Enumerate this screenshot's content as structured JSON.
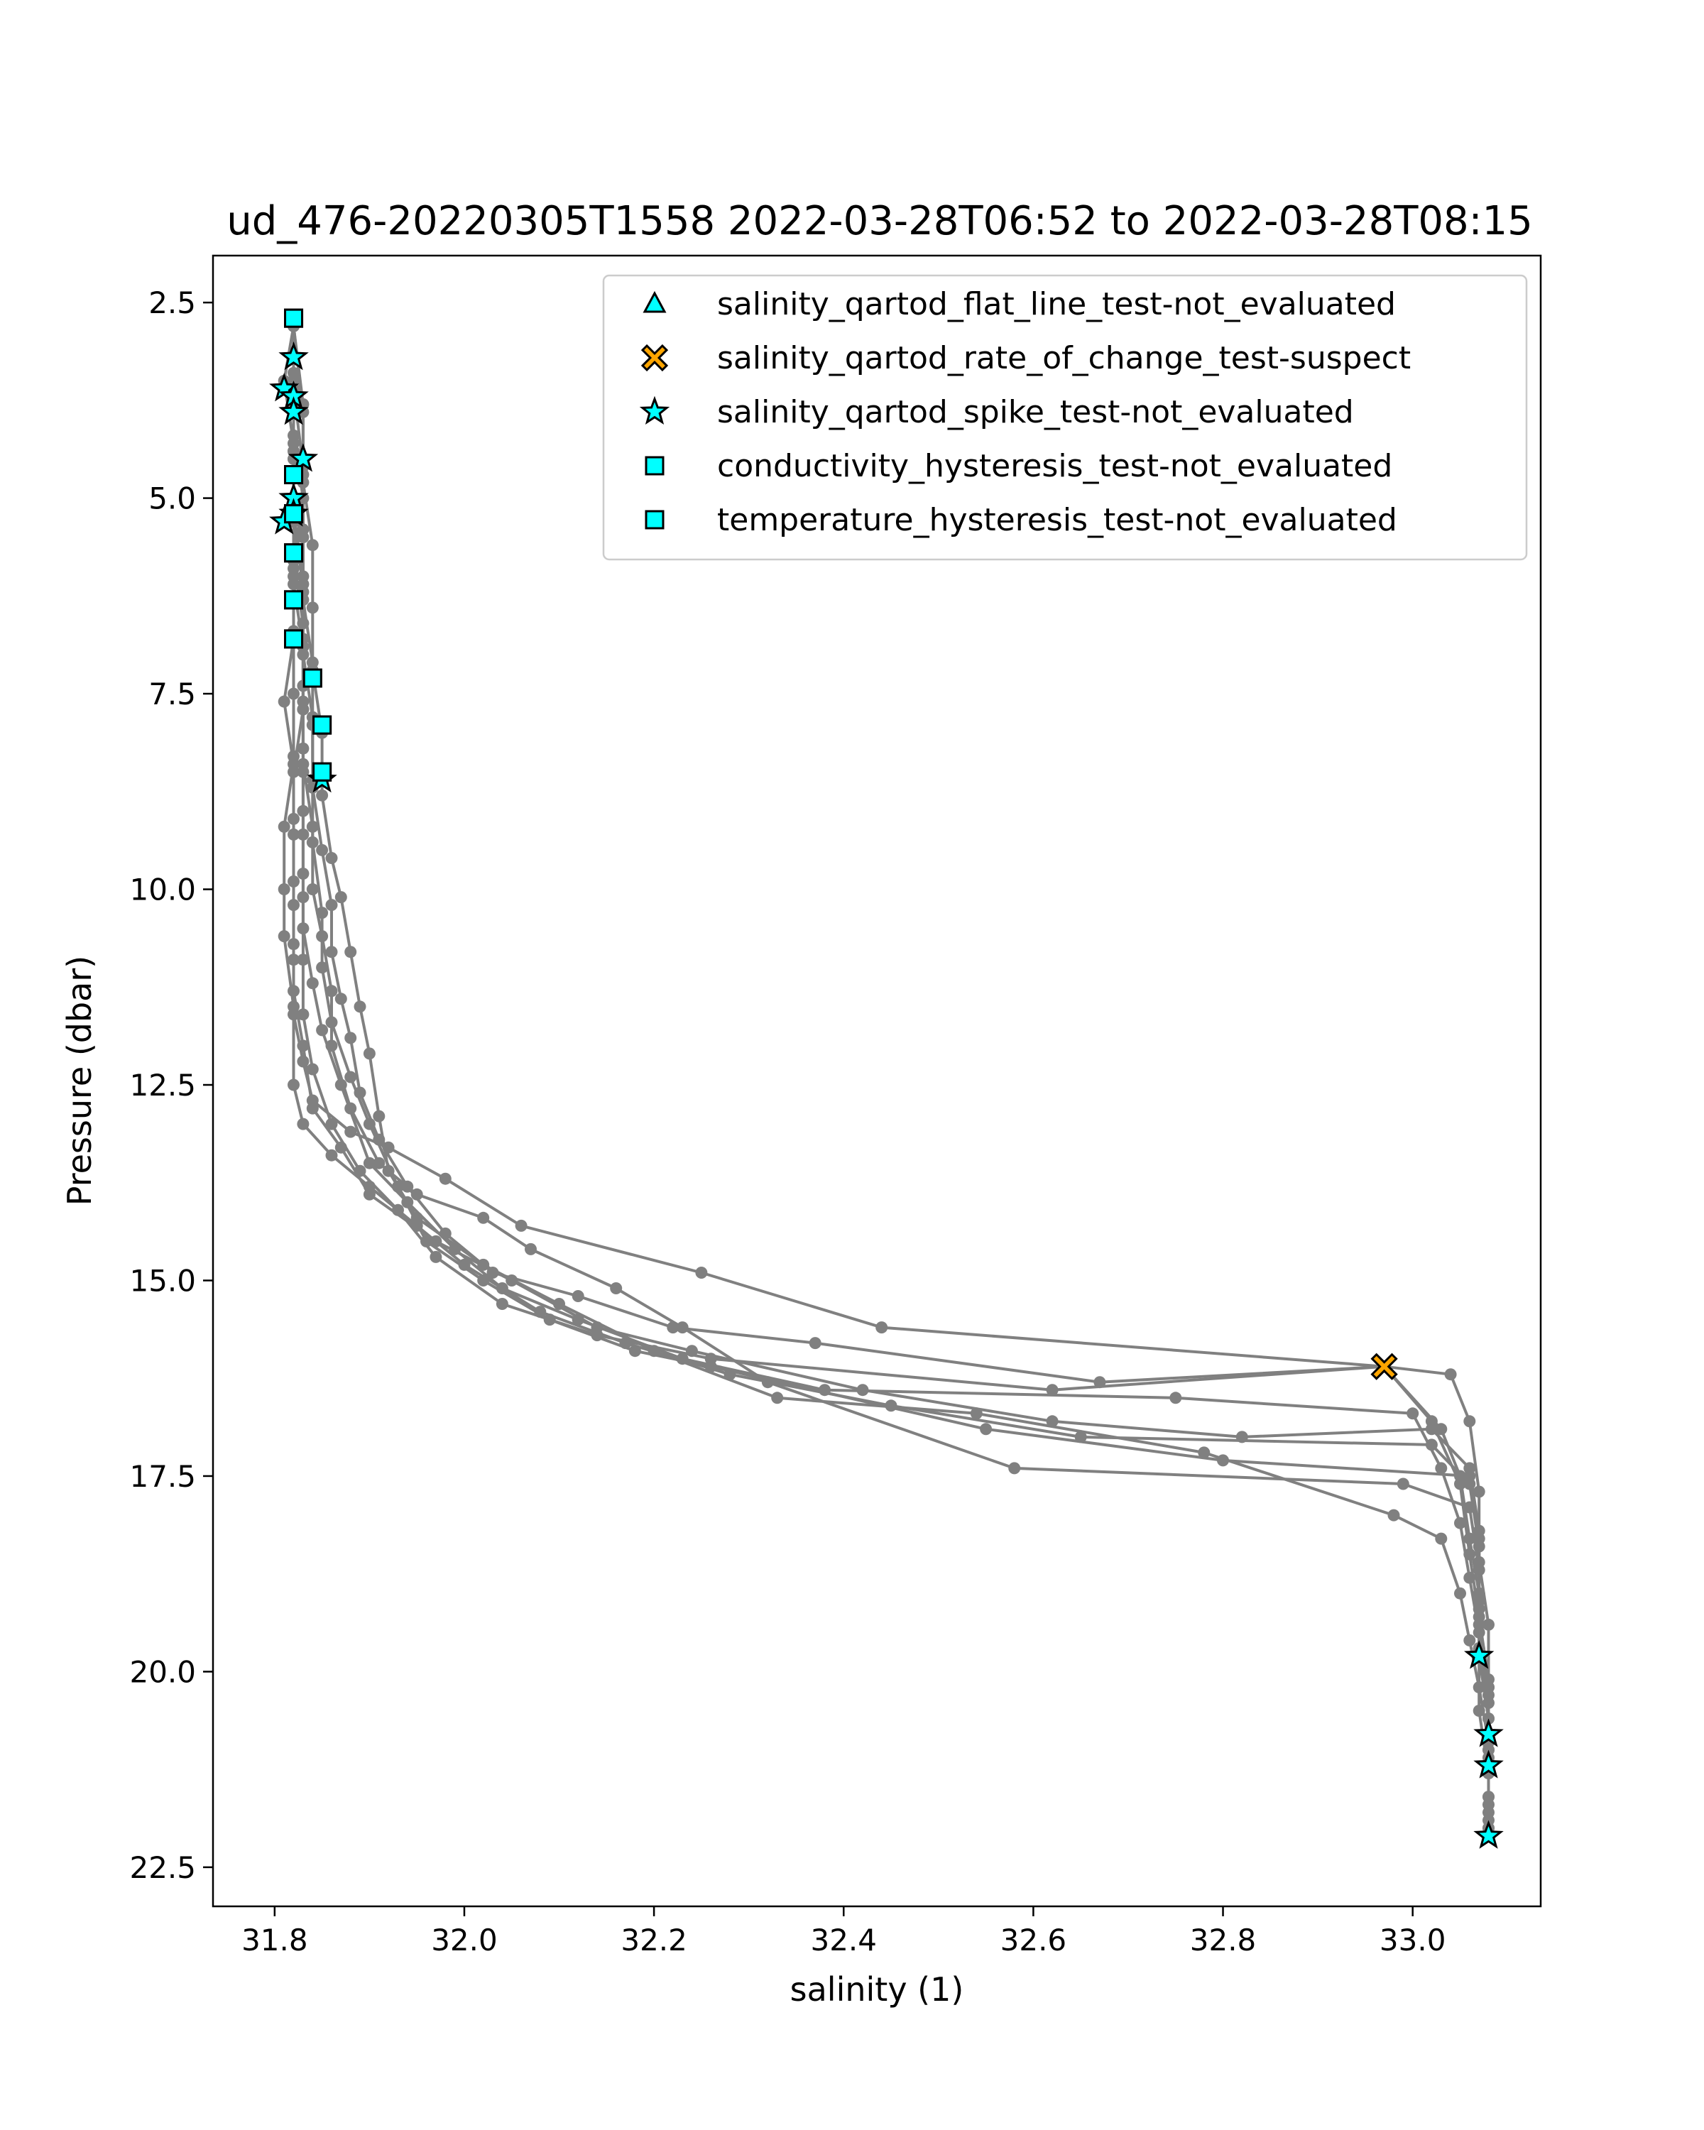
{
  "chart_data": {
    "type": "scatter",
    "title": "ud_476-20220305T1558 2022-03-28T06:52 to 2022-03-28T08:15",
    "xlabel": "salinity (1)",
    "ylabel": "Pressure (dbar)",
    "xlim": [
      31.735,
      33.135
    ],
    "ylim": [
      23.0,
      1.9
    ],
    "y_inverted": true,
    "grid": false,
    "legend_position": "top-right",
    "xticks": [
      "31.8",
      "32.0",
      "32.2",
      "32.4",
      "32.6",
      "32.8",
      "33.0"
    ],
    "yticks": [
      "2.5",
      "5.0",
      "7.5",
      "10.0",
      "12.5",
      "15.0",
      "17.5",
      "20.0",
      "22.5"
    ],
    "profile_color": "#808080",
    "profiles": [
      [
        [
          31.82,
          2.8
        ],
        [
          31.82,
          3.6
        ],
        [
          31.82,
          4.4
        ],
        [
          31.82,
          5.2
        ],
        [
          31.82,
          6.0
        ],
        [
          31.82,
          6.8
        ],
        [
          31.81,
          7.6
        ],
        [
          31.82,
          8.4
        ],
        [
          31.81,
          9.2
        ],
        [
          31.81,
          10.0
        ],
        [
          31.81,
          10.6
        ],
        [
          31.82,
          11.5
        ],
        [
          31.82,
          12.5
        ],
        [
          31.83,
          13.0
        ],
        [
          31.86,
          13.4
        ],
        [
          31.9,
          13.8
        ],
        [
          31.95,
          14.3
        ],
        [
          32.0,
          14.8
        ],
        [
          32.08,
          15.4
        ],
        [
          32.17,
          15.8
        ],
        [
          32.28,
          16.2
        ],
        [
          32.45,
          16.6
        ],
        [
          32.65,
          17.0
        ],
        [
          33.02,
          17.1
        ],
        [
          33.06,
          17.6
        ],
        [
          33.07,
          18.4
        ],
        [
          33.07,
          19.2
        ],
        [
          33.07,
          19.8
        ],
        [
          33.08,
          20.6
        ],
        [
          33.08,
          21.2
        ],
        [
          33.08,
          21.9
        ],
        [
          33.08,
          22.1
        ]
      ],
      [
        [
          31.82,
          2.8
        ],
        [
          31.82,
          3.7
        ],
        [
          31.82,
          4.5
        ],
        [
          31.82,
          5.3
        ],
        [
          31.82,
          6.1
        ],
        [
          31.83,
          6.9
        ],
        [
          31.83,
          7.7
        ],
        [
          31.82,
          8.5
        ],
        [
          31.82,
          9.3
        ],
        [
          31.82,
          10.2
        ],
        [
          31.82,
          10.9
        ],
        [
          31.82,
          11.6
        ],
        [
          31.83,
          12.2
        ],
        [
          31.84,
          12.7
        ],
        [
          31.88,
          13.1
        ],
        [
          31.92,
          13.3
        ],
        [
          31.98,
          13.7
        ],
        [
          32.06,
          14.3
        ],
        [
          32.25,
          14.9
        ],
        [
          32.44,
          15.6
        ],
        [
          32.97,
          16.1
        ],
        [
          33.03,
          16.9
        ],
        [
          33.05,
          17.5
        ],
        [
          33.06,
          18.3
        ],
        [
          33.07,
          19.0
        ],
        [
          33.07,
          19.7
        ],
        [
          33.08,
          20.4
        ],
        [
          33.08,
          20.8
        ],
        [
          33.08,
          21.6
        ],
        [
          33.08,
          22.0
        ]
      ],
      [
        [
          31.82,
          2.8
        ],
        [
          31.82,
          3.4
        ],
        [
          31.82,
          4.2
        ],
        [
          31.83,
          5.0
        ],
        [
          31.82,
          5.8
        ],
        [
          31.83,
          6.6
        ],
        [
          31.83,
          7.4
        ],
        [
          31.83,
          8.2
        ],
        [
          31.83,
          9.0
        ],
        [
          31.83,
          9.8
        ],
        [
          31.83,
          10.5
        ],
        [
          31.84,
          11.2
        ],
        [
          31.85,
          11.8
        ],
        [
          31.87,
          12.5
        ],
        [
          31.9,
          13.5
        ],
        [
          31.94,
          14.0
        ],
        [
          31.99,
          14.6
        ],
        [
          32.04,
          15.1
        ],
        [
          32.12,
          15.5
        ],
        [
          32.23,
          16.0
        ],
        [
          32.38,
          16.4
        ],
        [
          32.75,
          16.5
        ],
        [
          33.0,
          16.7
        ],
        [
          33.03,
          17.4
        ],
        [
          33.05,
          18.1
        ],
        [
          33.06,
          18.8
        ],
        [
          33.07,
          19.5
        ],
        [
          33.08,
          20.3
        ],
        [
          33.08,
          21.1
        ]
      ],
      [
        [
          31.82,
          2.8
        ],
        [
          31.83,
          3.8
        ],
        [
          31.83,
          4.7
        ],
        [
          31.83,
          5.5
        ],
        [
          31.83,
          6.3
        ],
        [
          31.84,
          7.1
        ],
        [
          31.84,
          7.9
        ],
        [
          31.84,
          8.7
        ],
        [
          31.85,
          9.5
        ],
        [
          31.86,
          10.2
        ],
        [
          31.86,
          10.8
        ],
        [
          31.87,
          11.4
        ],
        [
          31.88,
          11.9
        ],
        [
          31.89,
          12.6
        ],
        [
          31.91,
          13.2
        ],
        [
          31.94,
          13.8
        ],
        [
          31.98,
          14.4
        ],
        [
          32.03,
          14.9
        ],
        [
          32.12,
          15.2
        ],
        [
          32.22,
          15.6
        ],
        [
          32.37,
          15.8
        ],
        [
          32.67,
          16.3
        ],
        [
          32.97,
          16.1
        ],
        [
          33.04,
          16.2
        ],
        [
          33.06,
          16.8
        ],
        [
          33.07,
          17.7
        ],
        [
          33.07,
          18.6
        ],
        [
          33.08,
          19.4
        ],
        [
          33.08,
          20.2
        ],
        [
          33.08,
          21.0
        ]
      ],
      [
        [
          31.82,
          2.8
        ],
        [
          31.83,
          3.9
        ],
        [
          31.83,
          4.8
        ],
        [
          31.84,
          5.6
        ],
        [
          31.84,
          6.4
        ],
        [
          31.84,
          7.2
        ],
        [
          31.85,
          8.0
        ],
        [
          31.85,
          8.8
        ],
        [
          31.86,
          9.6
        ],
        [
          31.87,
          10.1
        ],
        [
          31.88,
          10.8
        ],
        [
          31.89,
          11.5
        ],
        [
          31.9,
          12.1
        ],
        [
          31.91,
          12.9
        ],
        [
          31.92,
          13.6
        ],
        [
          31.95,
          14.2
        ],
        [
          32.02,
          14.8
        ],
        [
          32.1,
          15.3
        ],
        [
          32.2,
          15.9
        ],
        [
          32.33,
          16.5
        ],
        [
          32.54,
          16.7
        ],
        [
          32.78,
          17.2
        ],
        [
          32.98,
          18.0
        ],
        [
          33.03,
          18.3
        ],
        [
          33.05,
          19.0
        ],
        [
          33.06,
          19.6
        ],
        [
          33.07,
          20.2
        ],
        [
          33.08,
          20.9
        ],
        [
          33.08,
          21.6
        ]
      ],
      [
        [
          31.82,
          2.8
        ],
        [
          31.81,
          3.5
        ],
        [
          31.82,
          4.3
        ],
        [
          31.82,
          5.1
        ],
        [
          31.82,
          5.9
        ],
        [
          31.82,
          6.7
        ],
        [
          31.82,
          7.5
        ],
        [
          31.82,
          8.3
        ],
        [
          31.82,
          9.1
        ],
        [
          31.82,
          9.9
        ],
        [
          31.82,
          10.7
        ],
        [
          31.82,
          11.3
        ],
        [
          31.83,
          12.0
        ],
        [
          31.84,
          12.8
        ],
        [
          31.87,
          13.3
        ],
        [
          31.9,
          13.9
        ],
        [
          31.97,
          14.5
        ],
        [
          32.05,
          15.0
        ],
        [
          32.14,
          15.6
        ],
        [
          32.24,
          15.9
        ],
        [
          32.42,
          16.4
        ],
        [
          32.62,
          16.8
        ],
        [
          32.82,
          17.0
        ],
        [
          33.02,
          16.9
        ],
        [
          33.06,
          17.4
        ],
        [
          33.07,
          18.2
        ],
        [
          33.07,
          19.0
        ],
        [
          33.07,
          19.7
        ],
        [
          33.07,
          20.5
        ],
        [
          33.08,
          21.3
        ]
      ],
      [
        [
          31.82,
          2.8
        ],
        [
          31.82,
          3.6
        ],
        [
          31.83,
          4.6
        ],
        [
          31.83,
          5.4
        ],
        [
          31.83,
          6.2
        ],
        [
          31.83,
          7.0
        ],
        [
          31.84,
          7.8
        ],
        [
          31.84,
          8.6
        ],
        [
          31.84,
          9.4
        ],
        [
          31.85,
          10.3
        ],
        [
          31.85,
          11.0
        ],
        [
          31.86,
          11.7
        ],
        [
          31.88,
          12.4
        ],
        [
          31.9,
          13.0
        ],
        [
          31.93,
          13.8
        ],
        [
          31.96,
          14.5
        ],
        [
          32.02,
          15.0
        ],
        [
          32.09,
          15.5
        ],
        [
          32.18,
          15.9
        ],
        [
          32.26,
          16.1
        ],
        [
          32.55,
          16.9
        ],
        [
          32.8,
          17.3
        ],
        [
          33.06,
          17.5
        ],
        [
          33.07,
          18.3
        ],
        [
          33.07,
          19.1
        ],
        [
          33.07,
          19.8
        ],
        [
          33.08,
          20.6
        ],
        [
          33.08,
          21.2
        ],
        [
          33.08,
          22.0
        ]
      ],
      [
        [
          31.82,
          2.8
        ],
        [
          31.82,
          3.5
        ],
        [
          31.82,
          4.4
        ],
        [
          31.82,
          5.3
        ],
        [
          31.83,
          6.1
        ],
        [
          31.83,
          6.9
        ],
        [
          31.83,
          7.7
        ],
        [
          31.83,
          8.5
        ],
        [
          31.83,
          9.3
        ],
        [
          31.83,
          10.1
        ],
        [
          31.83,
          10.9
        ],
        [
          31.83,
          11.6
        ],
        [
          31.84,
          12.3
        ],
        [
          31.86,
          13.0
        ],
        [
          31.89,
          13.6
        ],
        [
          31.93,
          14.1
        ],
        [
          31.97,
          14.7
        ],
        [
          32.04,
          15.3
        ],
        [
          32.14,
          15.7
        ],
        [
          32.26,
          16.0
        ],
        [
          32.62,
          16.4
        ],
        [
          32.97,
          16.1
        ],
        [
          33.02,
          16.8
        ],
        [
          33.05,
          17.6
        ],
        [
          33.06,
          18.5
        ],
        [
          33.07,
          19.3
        ],
        [
          33.08,
          20.1
        ],
        [
          33.08,
          20.9
        ],
        [
          33.08,
          21.8
        ]
      ],
      [
        [
          31.82,
          2.8
        ],
        [
          31.82,
          3.7
        ],
        [
          31.82,
          4.5
        ],
        [
          31.82,
          5.2
        ],
        [
          31.83,
          6.0
        ],
        [
          31.83,
          6.8
        ],
        [
          31.83,
          7.6
        ],
        [
          31.83,
          8.4
        ],
        [
          31.84,
          9.2
        ],
        [
          31.84,
          10.0
        ],
        [
          31.85,
          10.6
        ],
        [
          31.86,
          11.3
        ],
        [
          31.86,
          12.0
        ],
        [
          31.88,
          12.8
        ],
        [
          31.91,
          13.5
        ],
        [
          31.95,
          13.9
        ],
        [
          32.02,
          14.2
        ],
        [
          32.07,
          14.6
        ],
        [
          32.16,
          15.1
        ],
        [
          32.23,
          15.6
        ],
        [
          32.32,
          16.3
        ],
        [
          32.58,
          17.4
        ],
        [
          32.99,
          17.6
        ],
        [
          33.06,
          17.9
        ],
        [
          33.07,
          18.7
        ],
        [
          33.07,
          19.4
        ],
        [
          33.08,
          20.2
        ],
        [
          33.08,
          21.0
        ],
        [
          33.08,
          21.7
        ]
      ]
    ],
    "flags": [
      {
        "label": "salinity_qartod_spike_test-not_evaluated",
        "marker": "star",
        "color": "#00ffff",
        "points": [
          [
            31.82,
            3.2
          ],
          [
            31.81,
            3.6
          ],
          [
            31.82,
            3.7
          ],
          [
            31.82,
            3.9
          ],
          [
            31.83,
            4.5
          ],
          [
            31.82,
            5.0
          ],
          [
            31.82,
            5.2
          ],
          [
            31.81,
            5.3
          ],
          [
            31.85,
            8.6
          ],
          [
            33.07,
            19.8
          ],
          [
            33.08,
            20.8
          ],
          [
            33.08,
            21.2
          ],
          [
            33.08,
            22.1
          ]
        ]
      },
      {
        "label": "conductivity_hysteresis_test-not_evaluated",
        "marker": "square",
        "color": "#00ffff",
        "points": [
          [
            31.82,
            2.7
          ],
          [
            31.82,
            4.7
          ],
          [
            31.82,
            5.2
          ],
          [
            31.82,
            5.7
          ],
          [
            31.82,
            6.3
          ],
          [
            31.82,
            6.8
          ],
          [
            31.84,
            7.3
          ],
          [
            31.85,
            7.9
          ],
          [
            31.85,
            8.5
          ]
        ]
      },
      {
        "label": "temperature_hysteresis_test-not_evaluated",
        "marker": "square",
        "color": "#00ffff",
        "points": [
          [
            31.82,
            2.7
          ],
          [
            31.82,
            4.7
          ],
          [
            31.82,
            5.2
          ],
          [
            31.82,
            5.7
          ],
          [
            31.82,
            6.3
          ],
          [
            31.82,
            6.8
          ],
          [
            31.84,
            7.3
          ],
          [
            31.85,
            7.9
          ],
          [
            31.85,
            8.5
          ]
        ]
      },
      {
        "label": "salinity_qartod_rate_of_change_test-suspect",
        "marker": "x",
        "color": "#ffa500",
        "points": [
          [
            32.97,
            16.1
          ]
        ]
      }
    ],
    "legend": [
      {
        "label": "salinity_qartod_flat_line_test-not_evaluated",
        "marker": "triangle",
        "color": "#00ffff"
      },
      {
        "label": "salinity_qartod_rate_of_change_test-suspect",
        "marker": "x",
        "color": "#ffa500"
      },
      {
        "label": "salinity_qartod_spike_test-not_evaluated",
        "marker": "star",
        "color": "#00ffff"
      },
      {
        "label": "conductivity_hysteresis_test-not_evaluated",
        "marker": "square",
        "color": "#00ffff"
      },
      {
        "label": "temperature_hysteresis_test-not_evaluated",
        "marker": "square",
        "color": "#00ffff"
      }
    ]
  }
}
